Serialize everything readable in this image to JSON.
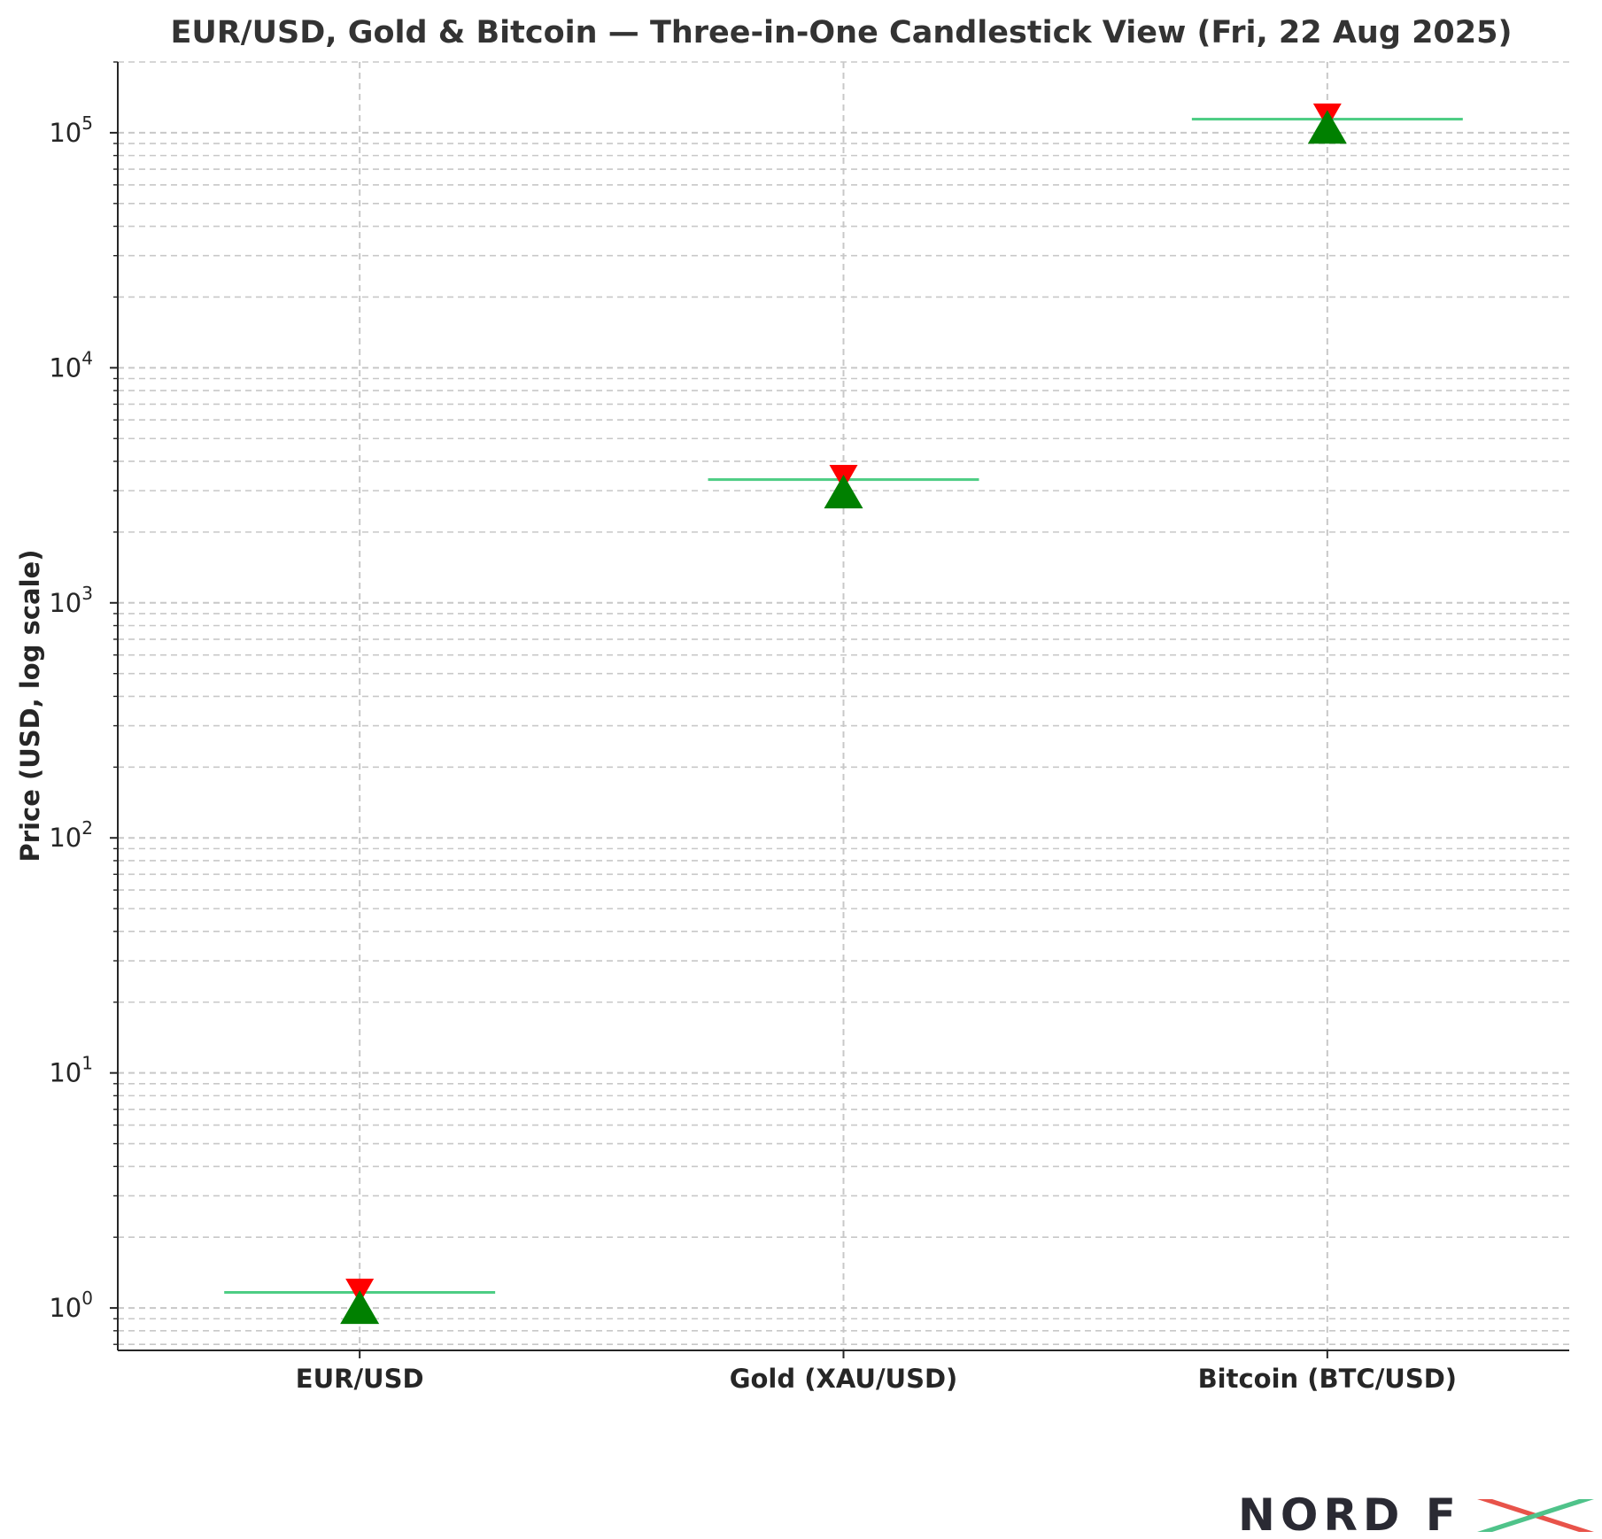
{
  "chart_data": {
    "type": "candlestick",
    "title": "EUR/USD, Gold & Bitcoin — Three-in-One Candlestick View (Fri, 22 Aug 2025)",
    "ylabel": "Price (USD, log scale)",
    "xlabel": "",
    "y_scale": "log",
    "ylim": [
      0.66,
      200000
    ],
    "categories": [
      "EUR/USD",
      "Gold (XAU/USD)",
      "Bitcoin (BTC/USD)"
    ],
    "ytick_labels": [
      {
        "value": 1,
        "base": "10",
        "exp": "0"
      },
      {
        "value": 10,
        "base": "10",
        "exp": "1"
      },
      {
        "value": 100,
        "base": "10",
        "exp": "2"
      },
      {
        "value": 1000,
        "base": "10",
        "exp": "3"
      },
      {
        "value": 10000,
        "base": "10",
        "exp": "4"
      },
      {
        "value": 100000,
        "base": "10",
        "exp": "5"
      }
    ],
    "candles": [
      {
        "category": "EUR/USD",
        "open": 1.16,
        "high": 1.17,
        "low": 1.16,
        "close": 1.17,
        "resistance": 1.18,
        "support": 1.0
      },
      {
        "category": "Gold (XAU/USD)",
        "open": 3330,
        "high": 3370,
        "low": 3320,
        "close": 3360,
        "resistance": 3420,
        "support": 2950
      },
      {
        "category": "Bitcoin (BTC/USD)",
        "open": 113500,
        "high": 116000,
        "low": 112000,
        "close": 115000,
        "resistance": 118000,
        "support": 105000
      }
    ],
    "grid": true,
    "colors": {
      "candle_body": "#4dcd84",
      "resistance_marker": "#ff0000",
      "support_marker": "#008000",
      "grid": "#c8c8c8",
      "axes": "#262626",
      "title": "#333333"
    }
  },
  "logo": {
    "text": "NORD FX",
    "colors": {
      "dark": "#2a2a33",
      "red": "#e8534a",
      "green": "#4fc38a"
    }
  }
}
